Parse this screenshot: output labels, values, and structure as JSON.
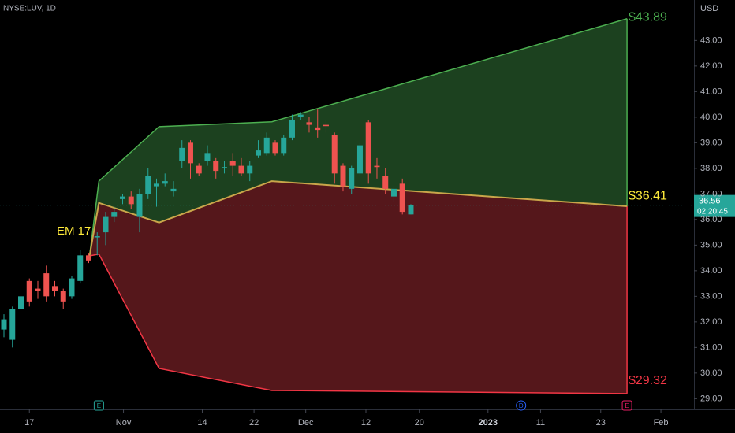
{
  "chart_data": {
    "type": "candlestick",
    "title": "NYSE:LUV, 1D",
    "currency": "USD",
    "x": [
      0,
      1,
      2,
      3,
      4,
      5,
      6,
      7,
      8,
      9,
      10,
      11,
      12,
      13,
      14,
      15,
      16,
      17,
      18,
      19,
      20,
      21,
      22,
      23,
      24,
      25,
      26,
      27,
      28,
      29,
      30,
      31,
      32,
      33,
      34,
      35,
      36,
      37,
      38,
      39,
      40,
      41,
      42,
      43,
      44,
      45,
      46,
      47,
      48
    ],
    "open": [
      31.7,
      31.3,
      32.5,
      33.6,
      33.3,
      33.9,
      33.4,
      33.2,
      33.0,
      33.6,
      34.6,
      35.3,
      35.5,
      36.1,
      36.8,
      36.9,
      36.1,
      37.0,
      37.3,
      37.4,
      37.1,
      38.3,
      39.0,
      38.1,
      38.3,
      38.3,
      38.0,
      38.3,
      38.1,
      37.8,
      38.5,
      38.6,
      39.0,
      38.6,
      39.2,
      40.0,
      39.8,
      39.6,
      39.7,
      39.3,
      38.1,
      37.2,
      37.8,
      39.8,
      38.1,
      37.7,
      36.9,
      37.4,
      36.2
    ],
    "high": [
      32.3,
      32.6,
      33.2,
      33.7,
      33.6,
      34.2,
      33.6,
      33.3,
      33.8,
      34.8,
      34.7,
      35.5,
      36.3,
      36.5,
      37.0,
      37.1,
      37.2,
      38.0,
      37.6,
      37.8,
      37.5,
      39.1,
      39.1,
      38.2,
      38.9,
      38.4,
      38.3,
      38.6,
      38.4,
      38.3,
      39.1,
      39.4,
      39.1,
      39.3,
      40.1,
      40.2,
      40.0,
      40.3,
      39.9,
      39.4,
      38.2,
      38.1,
      39.0,
      39.9,
      38.4,
      38.0,
      37.3,
      37.6,
      36.6
    ],
    "low": [
      31.4,
      31.0,
      32.4,
      32.6,
      32.9,
      32.8,
      33.0,
      32.5,
      32.9,
      33.5,
      34.3,
      34.6,
      35.0,
      35.9,
      36.6,
      36.4,
      35.5,
      36.8,
      36.5,
      37.3,
      36.9,
      38.0,
      37.6,
      37.7,
      38.1,
      37.6,
      37.8,
      37.7,
      37.7,
      37.5,
      38.4,
      38.5,
      38.5,
      38.5,
      39.1,
      39.9,
      39.4,
      39.2,
      39.4,
      37.4,
      37.1,
      37.0,
      37.7,
      37.4,
      37.6,
      37.0,
      36.7,
      36.2,
      36.2
    ],
    "close": [
      32.1,
      32.5,
      33.0,
      32.8,
      33.2,
      33.0,
      33.2,
      32.8,
      33.7,
      34.6,
      34.4,
      35.35,
      36.1,
      36.3,
      36.9,
      36.6,
      37.0,
      37.7,
      37.4,
      37.5,
      37.2,
      38.8,
      38.2,
      37.8,
      38.6,
      37.9,
      38.05,
      38.1,
      37.8,
      38.1,
      38.7,
      39.2,
      38.6,
      39.2,
      39.9,
      40.1,
      39.7,
      39.5,
      39.65,
      37.8,
      37.3,
      38.0,
      38.9,
      37.8,
      38.05,
      37.2,
      37.2,
      36.3,
      36.56
    ],
    "up_color": "#26a69a",
    "down_color": "#ef5350",
    "xlim": [
      -0.465,
      81.4
    ],
    "ylim": [
      28.58,
      44.58
    ],
    "yticks": [
      {
        "value": 29,
        "label": "29.00"
      },
      {
        "value": 30,
        "label": "30.00"
      },
      {
        "value": 31,
        "label": "31.00"
      },
      {
        "value": 32,
        "label": "32.00"
      },
      {
        "value": 33,
        "label": "33.00"
      },
      {
        "value": 34,
        "label": "34.00"
      },
      {
        "value": 35,
        "label": "35.00"
      },
      {
        "value": 36,
        "label": "36.00"
      },
      {
        "value": 37,
        "label": "37.00"
      },
      {
        "value": 38,
        "label": "38.00"
      },
      {
        "value": 39,
        "label": "39.00"
      },
      {
        "value": 40,
        "label": "40.00"
      },
      {
        "value": 41,
        "label": "41.00"
      },
      {
        "value": 42,
        "label": "42.00"
      },
      {
        "value": 43,
        "label": "43.00"
      }
    ],
    "xticks": [
      {
        "value": 3,
        "label": "17"
      },
      {
        "value": 14.1,
        "label": "Nov"
      },
      {
        "value": 23.4,
        "label": "14"
      },
      {
        "value": 29.5,
        "label": "22"
      },
      {
        "value": 35.6,
        "label": "Dec"
      },
      {
        "value": 42.7,
        "label": "12"
      },
      {
        "value": 49,
        "label": "20"
      },
      {
        "value": 57.1,
        "label": "2023"
      },
      {
        "value": 63.3,
        "label": "11"
      },
      {
        "value": 70.4,
        "label": "23"
      },
      {
        "value": 77.5,
        "label": "Feb"
      }
    ],
    "last_price": 36.56,
    "countdown": "02:20:45",
    "bands": [
      {
        "fill": "#1d4421",
        "line": "#4caf50",
        "x": [
          10.1,
          11.2,
          18.3,
          31.6,
          73.5
        ],
        "upper": [
          34.58,
          37.5,
          39.63,
          39.82,
          43.85
        ],
        "lower": [
          34.58,
          36.65,
          35.88,
          37.5,
          36.52
        ]
      },
      {
        "fill": "#5a181c",
        "line": "#f23645",
        "x": [
          10.1,
          11.2,
          18.3,
          31.6,
          73.5
        ],
        "upper": [
          34.58,
          36.65,
          35.88,
          37.5,
          36.52
        ],
        "lower": [
          34.58,
          34.65,
          30.18,
          29.32,
          29.2
        ]
      }
    ],
    "mid_line_color": "#c9a64a",
    "annotations": [
      {
        "value": 43.89,
        "label": "$43.89",
        "color": "#4caf50"
      },
      {
        "value": 36.41,
        "label": "$36.41",
        "color": "#ffeb3b"
      },
      {
        "value": 29.32,
        "label": "$29.32",
        "color": "#f23645"
      }
    ],
    "em_label": {
      "text": "EM 17",
      "color": "#ffeb3b"
    },
    "events": [
      {
        "label": "E",
        "x": 11.2
      },
      {
        "label": "D",
        "x": 61
      },
      {
        "label": "E",
        "x": 73.5
      }
    ]
  }
}
